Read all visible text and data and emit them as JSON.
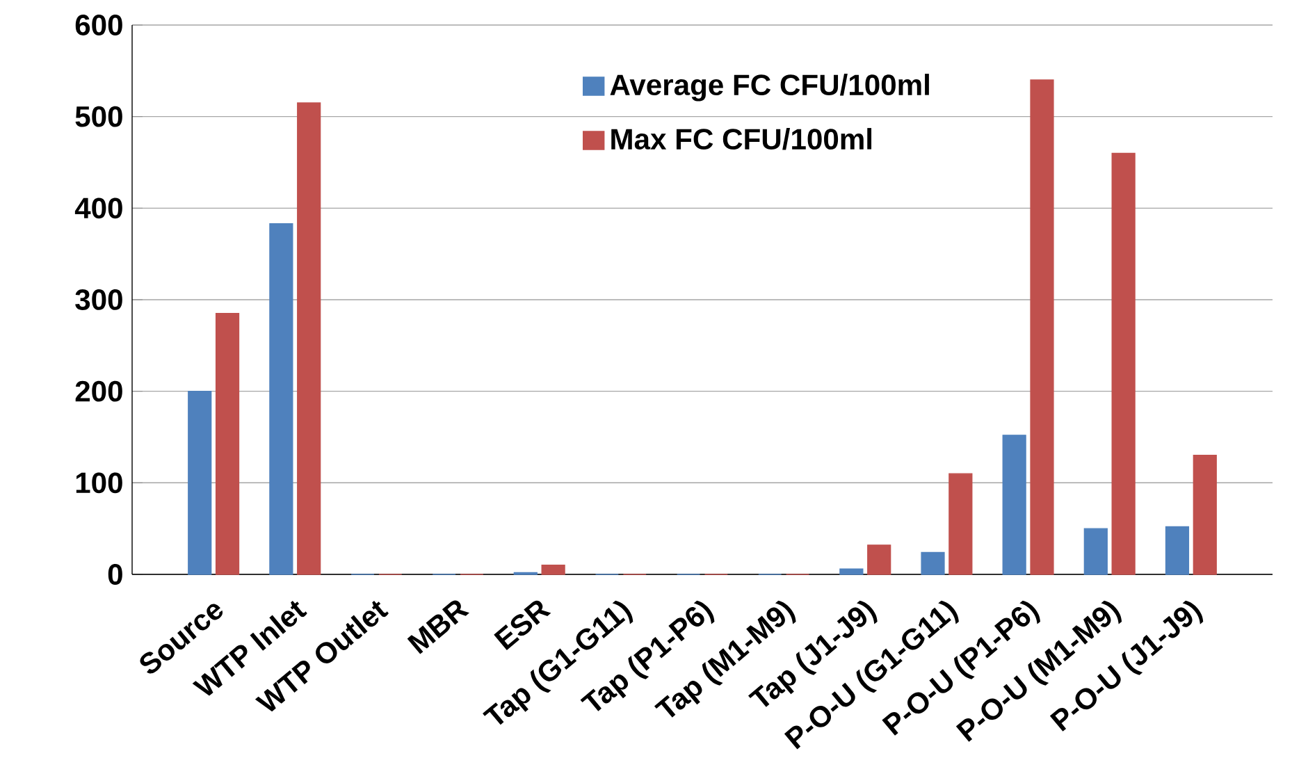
{
  "chart_data": {
    "type": "bar",
    "categories": [
      "Source",
      "WTP Inlet",
      "WTP Outlet",
      "MBR",
      "ESR",
      "Tap (G1-G11)",
      "Tap (P1-P6)",
      "Tap (M1-M9)",
      "Tap (J1-J9)",
      "P-O-U (G1-G11)",
      "P-O-U (P1-P6)",
      "P-O-U (M1-M9)",
      "P-O-U (J1-J9)"
    ],
    "series": [
      {
        "name": "Average FC CFU/100ml",
        "color": "#4f81bd",
        "values": [
          200,
          383,
          0,
          0,
          2,
          0,
          0,
          0,
          6,
          24,
          152,
          50,
          52
        ]
      },
      {
        "name": "Max FC CFU/100ml",
        "color": "#c0504d",
        "values": [
          285,
          515,
          0,
          0,
          10,
          0,
          0,
          0,
          32,
          110,
          540,
          460,
          130
        ]
      }
    ],
    "ylim": [
      0,
      600
    ],
    "yticks": [
      0,
      100,
      200,
      300,
      400,
      500,
      600
    ],
    "grid": "y",
    "legend": "top"
  }
}
